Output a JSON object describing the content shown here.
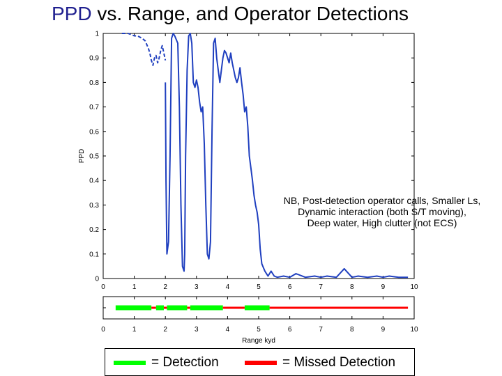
{
  "title": {
    "accent": "PPD",
    "rest": " vs. Range, and Operator Detections"
  },
  "legend": {
    "detection_label": "= Detection",
    "missed_label": "= Missed Detection"
  },
  "colors": {
    "line": "#1f3fbf",
    "detection": "#00ff00",
    "missed": "#ff0000",
    "title_accent": "#1f1f8f"
  },
  "chart_data": [
    {
      "type": "line",
      "ylabel": "PPD",
      "xlim": [
        0,
        10
      ],
      "ylim": [
        0,
        1
      ],
      "xticks": [
        "0",
        "1",
        "2",
        "3",
        "4",
        "5",
        "6",
        "7",
        "8",
        "9",
        "10"
      ],
      "yticks": [
        "0",
        "0.1",
        "0.2",
        "0.3",
        "0.4",
        "0.5",
        "0.6",
        "0.7",
        "0.8",
        "0.9",
        "1"
      ],
      "annotation": [
        "NB, Post-detection operator calls, Smaller Ls,",
        "Dynamic interaction (both S/T moving),",
        "Deep water, High clutter (not ECS)"
      ],
      "series": [
        {
          "style": "dashed",
          "x": [
            0.6,
            0.8,
            1.0,
            1.1,
            1.25,
            1.35,
            1.45,
            1.5,
            1.55,
            1.6,
            1.65,
            1.7,
            1.75,
            1.8,
            1.85,
            1.9,
            1.95,
            2.0
          ],
          "y": [
            1.0,
            1.0,
            0.99,
            0.99,
            0.98,
            0.97,
            0.94,
            0.92,
            0.89,
            0.87,
            0.9,
            0.91,
            0.88,
            0.9,
            0.93,
            0.95,
            0.92,
            0.89
          ]
        },
        {
          "style": "solid",
          "x": [
            2.0,
            2.02,
            2.05,
            2.1,
            2.15,
            2.2,
            2.25,
            2.3,
            2.4,
            2.45,
            2.5,
            2.55,
            2.6,
            2.62,
            2.65,
            2.7,
            2.75,
            2.8,
            2.85,
            2.9,
            2.95,
            3.0,
            3.05,
            3.1,
            3.15,
            3.2,
            3.25,
            3.3,
            3.35,
            3.4,
            3.45,
            3.5,
            3.55,
            3.6,
            3.65,
            3.7,
            3.75,
            3.8,
            3.85,
            3.9,
            3.95,
            4.0,
            4.05,
            4.1,
            4.15,
            4.2,
            4.25,
            4.3,
            4.35,
            4.4,
            4.45,
            4.5,
            4.55,
            4.6,
            4.65,
            4.7,
            4.75,
            4.8,
            4.85,
            4.9,
            4.95,
            5.0,
            5.05,
            5.1,
            5.2,
            5.3,
            5.4,
            5.5,
            5.6,
            5.8,
            6.0,
            6.2,
            6.5,
            6.8,
            7.0,
            7.2,
            7.5,
            7.75,
            8.0,
            8.2,
            8.5,
            8.8,
            9.0,
            9.2,
            9.5,
            9.8
          ],
          "y": [
            0.8,
            0.4,
            0.1,
            0.15,
            0.5,
            0.98,
            1.0,
            0.99,
            0.96,
            0.7,
            0.3,
            0.05,
            0.03,
            0.1,
            0.5,
            0.85,
            0.99,
            1.0,
            0.96,
            0.8,
            0.78,
            0.81,
            0.78,
            0.72,
            0.68,
            0.7,
            0.55,
            0.3,
            0.1,
            0.08,
            0.15,
            0.6,
            0.96,
            0.98,
            0.9,
            0.85,
            0.8,
            0.85,
            0.9,
            0.93,
            0.92,
            0.9,
            0.88,
            0.92,
            0.88,
            0.85,
            0.82,
            0.8,
            0.82,
            0.86,
            0.8,
            0.75,
            0.68,
            0.7,
            0.62,
            0.5,
            0.45,
            0.4,
            0.34,
            0.3,
            0.27,
            0.22,
            0.12,
            0.06,
            0.03,
            0.01,
            0.03,
            0.01,
            0.005,
            0.01,
            0.005,
            0.02,
            0.005,
            0.01,
            0.005,
            0.01,
            0.005,
            0.04,
            0.005,
            0.01,
            0.005,
            0.01,
            0.005,
            0.01,
            0.005,
            0.005
          ]
        }
      ]
    },
    {
      "type": "bar",
      "xlabel": "Range kyd",
      "xlim": [
        0,
        10
      ],
      "xticks": [
        "0",
        "1",
        "2",
        "3",
        "4",
        "5",
        "6",
        "7",
        "8",
        "9",
        "10"
      ],
      "segments": [
        {
          "start": 0.4,
          "end": 1.55,
          "status": "detection"
        },
        {
          "start": 1.55,
          "end": 1.7,
          "status": "missed"
        },
        {
          "start": 1.7,
          "end": 1.95,
          "status": "detection"
        },
        {
          "start": 1.95,
          "end": 2.05,
          "status": "missed"
        },
        {
          "start": 2.05,
          "end": 2.7,
          "status": "detection"
        },
        {
          "start": 2.7,
          "end": 2.8,
          "status": "missed"
        },
        {
          "start": 2.8,
          "end": 3.85,
          "status": "detection"
        },
        {
          "start": 3.85,
          "end": 4.55,
          "status": "missed"
        },
        {
          "start": 4.55,
          "end": 5.35,
          "status": "detection"
        },
        {
          "start": 5.35,
          "end": 9.8,
          "status": "missed"
        }
      ]
    }
  ]
}
